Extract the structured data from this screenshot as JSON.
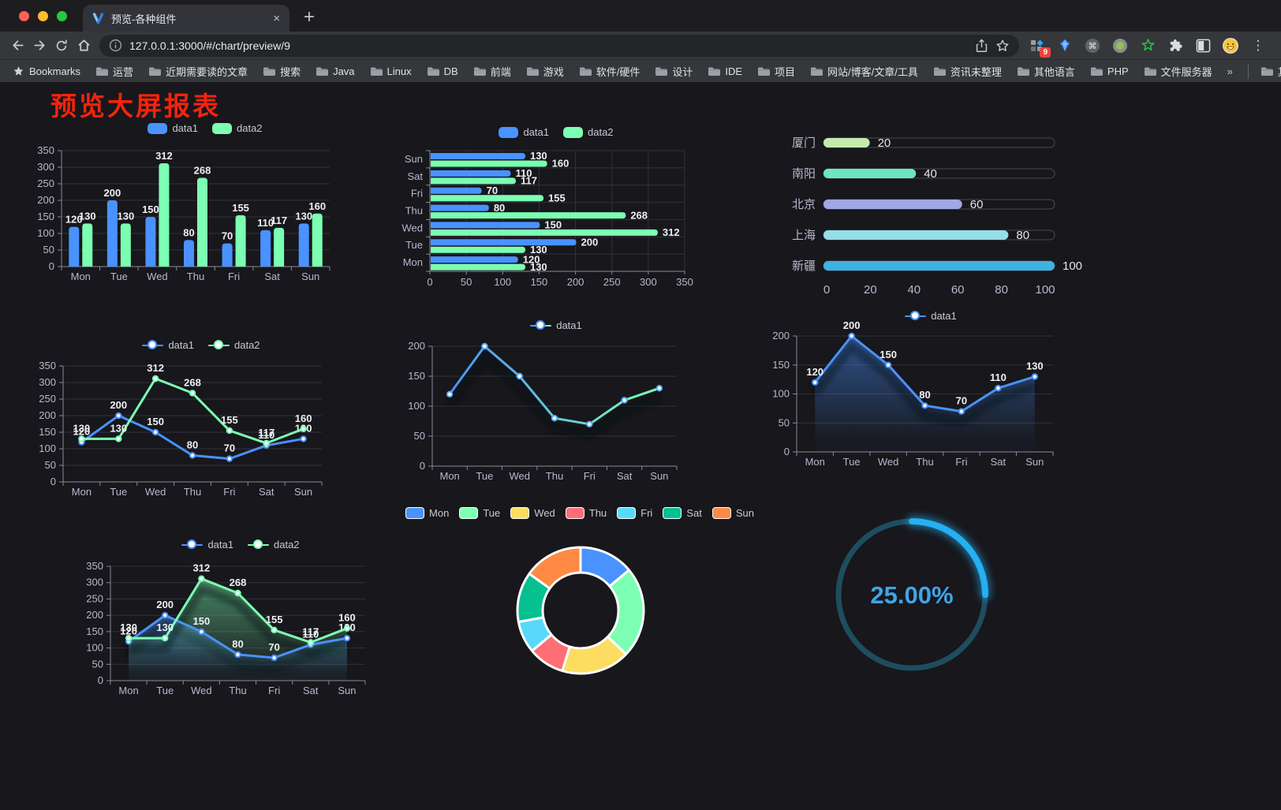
{
  "browser": {
    "tab_title": "预览-各种组件",
    "url": "127.0.0.1:3000/#/chart/preview/9",
    "extension_badge": "9",
    "new_tab_label": "+",
    "tab_close_label": "×",
    "menu_label": "⋮"
  },
  "bookmarks": {
    "items": [
      {
        "label": "Bookmarks",
        "icon": "star"
      },
      {
        "label": "运营",
        "icon": "folder"
      },
      {
        "label": "近期需要读的文章",
        "icon": "folder"
      },
      {
        "label": "搜索",
        "icon": "folder"
      },
      {
        "label": "Java",
        "icon": "folder"
      },
      {
        "label": "Linux",
        "icon": "folder"
      },
      {
        "label": "DB",
        "icon": "folder"
      },
      {
        "label": "前端",
        "icon": "folder"
      },
      {
        "label": "游戏",
        "icon": "folder"
      },
      {
        "label": "软件/硬件",
        "icon": "folder"
      },
      {
        "label": "设计",
        "icon": "folder"
      },
      {
        "label": "IDE",
        "icon": "folder"
      },
      {
        "label": "项目",
        "icon": "folder"
      },
      {
        "label": "网站/博客/文章/工具",
        "icon": "folder"
      },
      {
        "label": "资讯未整理",
        "icon": "folder"
      },
      {
        "label": "其他语言",
        "icon": "folder"
      },
      {
        "label": "PHP",
        "icon": "folder"
      },
      {
        "label": "文件服务器",
        "icon": "folder"
      },
      {
        "label": "»",
        "icon": "none",
        "overflow": true
      },
      {
        "label": "其他书签",
        "icon": "folder",
        "divider_before": true
      }
    ]
  },
  "page": {
    "title": "预览大屏报表",
    "title_color": "#f6230c",
    "background": "#17171c"
  },
  "chart_data": [
    {
      "id": "c1",
      "type": "bar",
      "categories": [
        "Mon",
        "Tue",
        "Wed",
        "Thu",
        "Fri",
        "Sat",
        "Sun"
      ],
      "series": [
        {
          "name": "data1",
          "color": "#4992ff",
          "values": [
            120,
            200,
            150,
            80,
            70,
            110,
            130
          ]
        },
        {
          "name": "data2",
          "color": "#7cffb2",
          "values": [
            130,
            130,
            312,
            268,
            155,
            117,
            160
          ]
        }
      ],
      "ylim": [
        0,
        350
      ],
      "ytick_step": 50,
      "legend_position": "top",
      "grid": true
    },
    {
      "id": "c2",
      "type": "bar-horizontal",
      "categories": [
        "Mon",
        "Tue",
        "Wed",
        "Thu",
        "Fri",
        "Sat",
        "Sun"
      ],
      "series": [
        {
          "name": "data1",
          "color": "#4992ff",
          "values": [
            120,
            200,
            150,
            80,
            70,
            110,
            130
          ]
        },
        {
          "name": "data2",
          "color": "#7cffb2",
          "values": [
            130,
            130,
            312,
            268,
            155,
            117,
            160
          ]
        }
      ],
      "xlim": [
        0,
        350
      ],
      "xtick_step": 50,
      "legend_position": "top",
      "grid": true
    },
    {
      "id": "c3",
      "type": "capsule",
      "items": [
        {
          "label": "厦门",
          "value": 20,
          "color": "#c4ebad"
        },
        {
          "label": "南阳",
          "value": 40,
          "color": "#6be6c1"
        },
        {
          "label": "北京",
          "value": 60,
          "color": "#a0a7e6"
        },
        {
          "label": "上海",
          "value": 80,
          "color": "#96dee8"
        },
        {
          "label": "新疆",
          "value": 100,
          "color": "#3fb1e3"
        }
      ],
      "xlim": [
        0,
        100
      ],
      "xticks": [
        0,
        20,
        40,
        60,
        80,
        100
      ]
    },
    {
      "id": "c4",
      "type": "line",
      "categories": [
        "Mon",
        "Tue",
        "Wed",
        "Thu",
        "Fri",
        "Sat",
        "Sun"
      ],
      "series": [
        {
          "name": "data1",
          "color": "#4992ff",
          "values": [
            120,
            200,
            150,
            80,
            70,
            110,
            130
          ]
        },
        {
          "name": "data2",
          "color": "#7cffb2",
          "values": [
            130,
            130,
            312,
            268,
            155,
            117,
            160
          ]
        }
      ],
      "ylim": [
        0,
        350
      ],
      "ytick_step": 50,
      "labels": true,
      "shadow": false,
      "legend_position": "top"
    },
    {
      "id": "c5",
      "type": "line",
      "categories": [
        "Mon",
        "Tue",
        "Wed",
        "Thu",
        "Fri",
        "Sat",
        "Sun"
      ],
      "series": [
        {
          "name": "data1",
          "gradient": [
            "#4992ff",
            "#7cffb2"
          ],
          "values": [
            120,
            200,
            150,
            80,
            70,
            110,
            130
          ]
        }
      ],
      "ylim": [
        0,
        200
      ],
      "ytick_step": 50,
      "labels": false,
      "shadow": true,
      "legend_position": "top"
    },
    {
      "id": "c6",
      "type": "line",
      "categories": [
        "Mon",
        "Tue",
        "Wed",
        "Thu",
        "Fri",
        "Sat",
        "Sun"
      ],
      "series": [
        {
          "name": "data1",
          "color": "#4992ff",
          "values": [
            120,
            200,
            150,
            80,
            70,
            110,
            130
          ],
          "area": true
        }
      ],
      "ylim": [
        0,
        200
      ],
      "ytick_step": 50,
      "labels": true,
      "shadow": true,
      "legend_position": "top"
    },
    {
      "id": "c7",
      "type": "line",
      "categories": [
        "Mon",
        "Tue",
        "Wed",
        "Thu",
        "Fri",
        "Sat",
        "Sun"
      ],
      "series": [
        {
          "name": "data1",
          "color": "#4992ff",
          "values": [
            120,
            200,
            150,
            80,
            70,
            110,
            130
          ],
          "area": true
        },
        {
          "name": "data2",
          "color": "#7cffb2",
          "values": [
            130,
            130,
            312,
            268,
            155,
            117,
            160
          ],
          "area": true
        }
      ],
      "ylim": [
        0,
        350
      ],
      "ytick_step": 50,
      "labels": true,
      "shadow": true,
      "legend_position": "top"
    },
    {
      "id": "c8",
      "type": "donut",
      "labels": [
        "Mon",
        "Tue",
        "Wed",
        "Thu",
        "Fri",
        "Sat",
        "Sun"
      ],
      "values": [
        120,
        200,
        150,
        80,
        70,
        110,
        130
      ],
      "colors": [
        "#4992ff",
        "#7cffb2",
        "#fddd60",
        "#ff6e76",
        "#58d9f9",
        "#05c091",
        "#ff8a45"
      ],
      "legend_position": "top"
    },
    {
      "id": "c9",
      "type": "progress",
      "value": 25,
      "label": "25.00%",
      "arc_color": "#25b0f2",
      "track_color": "#1e4d5f",
      "text_color": "#3fa5e8"
    }
  ]
}
